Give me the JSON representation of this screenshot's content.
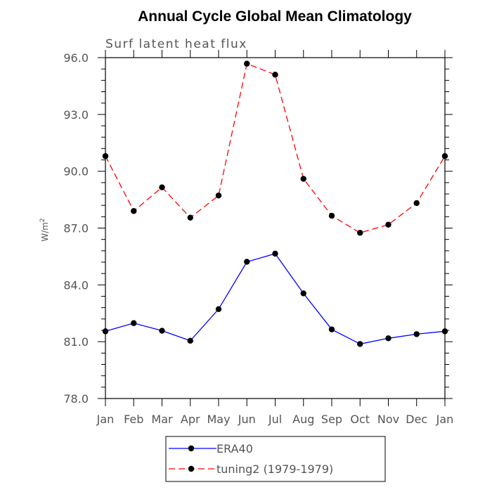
{
  "chart_data": {
    "type": "line",
    "title": "Annual Cycle Global Mean Climatology",
    "subtitle": "Surf latent heat flux",
    "ylabel": "W/m",
    "ylabel_sup": "2",
    "xlabel": "",
    "categories": [
      "Jan",
      "Feb",
      "Mar",
      "Apr",
      "May",
      "Jun",
      "Jul",
      "Aug",
      "Sep",
      "Oct",
      "Nov",
      "Dec",
      "Jan"
    ],
    "ylim": [
      78.0,
      96.0
    ],
    "yticks": [
      78.0,
      81.0,
      84.0,
      87.0,
      90.0,
      93.0,
      96.0
    ],
    "ytick_labels": [
      "78.0",
      "81.0",
      "84.0",
      "87.0",
      "90.0",
      "93.0",
      "96.0"
    ],
    "grid": false,
    "legend_position": "bottom",
    "series": [
      {
        "name": "ERA40",
        "color": "#0000ff",
        "dash": "solid",
        "values": [
          81.55,
          81.98,
          81.58,
          81.05,
          82.72,
          85.22,
          85.65,
          83.55,
          81.65,
          80.88,
          81.18,
          81.4,
          81.55
        ]
      },
      {
        "name": "tuning2 (1979-1979)",
        "color": "#ff0000",
        "dash": "dashed",
        "values": [
          90.8,
          87.9,
          89.15,
          87.55,
          88.72,
          95.68,
          95.1,
          89.6,
          87.65,
          86.75,
          87.18,
          88.32,
          90.8
        ]
      }
    ]
  }
}
